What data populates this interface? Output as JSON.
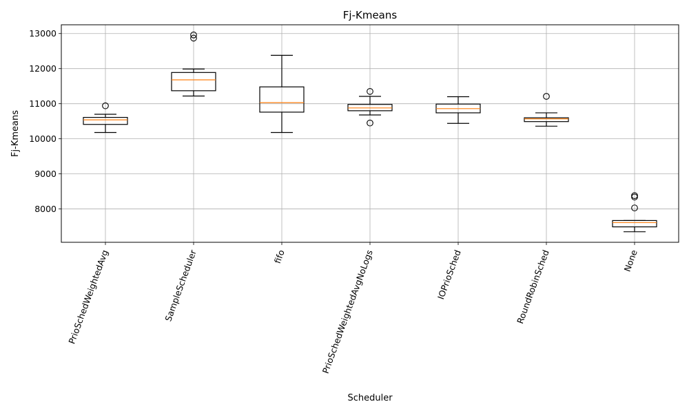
{
  "chart_data": {
    "type": "box",
    "title": "Fj-Kmeans",
    "xlabel": "Scheduler",
    "ylabel": "Fj-Kmeans",
    "ylim": [
      7050,
      13250
    ],
    "yticks": [
      8000,
      9000,
      10000,
      11000,
      12000,
      13000
    ],
    "grid": true,
    "legend": "none",
    "colors": {
      "box": "#000000",
      "median": "#ff7f0e",
      "grid": "#b0b0b0"
    },
    "categories": [
      "PrioSchedWeightedAvg",
      "SampleScheduler",
      "fifo",
      "PrioSchedWeightedAvgNoLogs",
      "IOPrioSched",
      "RoundRobinSched",
      "None"
    ],
    "boxes": [
      {
        "whislo": 10180,
        "q1": 10410,
        "med": 10540,
        "q3": 10610,
        "whishi": 10700,
        "fliers": [
          10940
        ]
      },
      {
        "whislo": 11220,
        "q1": 11370,
        "med": 11680,
        "q3": 11890,
        "whishi": 11990,
        "fliers": [
          12870,
          12960
        ]
      },
      {
        "whislo": 10180,
        "q1": 10760,
        "med": 11030,
        "q3": 11480,
        "whishi": 12380,
        "fliers": []
      },
      {
        "whislo": 10680,
        "q1": 10800,
        "med": 10880,
        "q3": 10980,
        "whishi": 11210,
        "fliers": [
          10450,
          11350
        ]
      },
      {
        "whislo": 10440,
        "q1": 10740,
        "med": 10860,
        "q3": 10990,
        "whishi": 11200,
        "fliers": []
      },
      {
        "whislo": 10360,
        "q1": 10490,
        "med": 10570,
        "q3": 10600,
        "whishi": 10740,
        "fliers": [
          11210
        ]
      },
      {
        "whislo": 7350,
        "q1": 7490,
        "med": 7610,
        "q3": 7670,
        "whishi": 7670,
        "fliers": [
          8030,
          8340,
          8380
        ]
      }
    ]
  }
}
